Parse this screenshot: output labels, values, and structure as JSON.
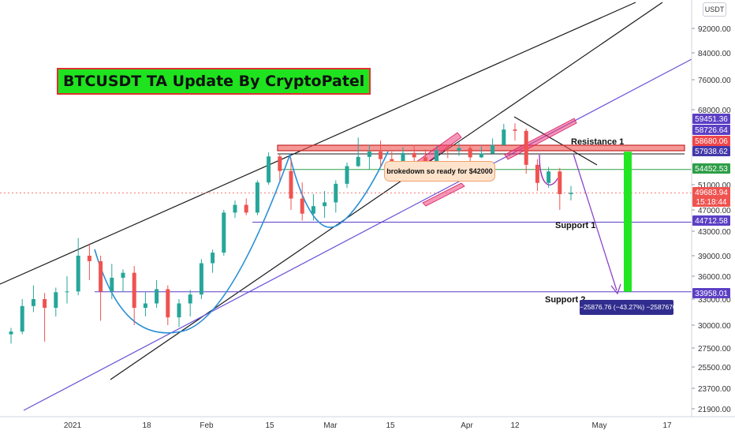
{
  "chart_data": {
    "type": "candlestick",
    "title": "BTCUSDT TA Update By CryptoPatel",
    "currency": "USDT",
    "y_ticks": [
      "92000.00",
      "84000.00",
      "76000.00",
      "68000.00",
      "51000.00",
      "47000.00",
      "43000.00",
      "39000.00",
      "36000.00",
      "33000.00",
      "30000.00",
      "27500.00",
      "25500.00",
      "23700.00",
      "21900.00"
    ],
    "y_tick_values": [
      92000,
      84000,
      76000,
      68000,
      51000,
      47000,
      43000,
      39000,
      36000,
      33000,
      30000,
      27500,
      25500,
      23700,
      21900
    ],
    "x_labels": [
      "2021",
      "18",
      "Feb",
      "15",
      "Mar",
      "15",
      "Apr",
      "12",
      "May",
      "17"
    ],
    "price_tags": [
      {
        "text": "59451.36",
        "color": "#5b3fc4"
      },
      {
        "text": "58726.64",
        "color": "#5b3fc4"
      },
      {
        "text": "58680.06",
        "color": "#f0464a"
      },
      {
        "text": "57938.62",
        "color": "#4338a8"
      },
      {
        "text": "54452.53",
        "color": "#2e9e47"
      },
      {
        "text": "49683.94",
        "color": "#ef5350"
      },
      {
        "text": "15:18:44",
        "color": "#ef5350"
      },
      {
        "text": "44712.58",
        "color": "#5b3fc4"
      },
      {
        "text": "33958.01",
        "color": "#5b3fc4"
      }
    ],
    "levels": {
      "resistance_1": 57938.62,
      "green_line": 54452.53,
      "support_1": 44712.58,
      "support_2": 33958.01,
      "last_price": 49683.94
    },
    "annotations": {
      "resistance_1": "Resistance 1",
      "support_1": "Support 1",
      "support_2": "Support 2",
      "note": "brokedown so ready for $42000",
      "measure": "−25876.76 (−43.27%) −2587676"
    },
    "candles_ohlc": [
      [
        29000,
        29700,
        28000,
        29300
      ],
      [
        29300,
        33000,
        29000,
        32200
      ],
      [
        32200,
        34800,
        31500,
        33000
      ],
      [
        33000,
        33800,
        28200,
        32000
      ],
      [
        32000,
        34500,
        31000,
        33900
      ],
      [
        33900,
        36000,
        32500,
        34000
      ],
      [
        34000,
        41900,
        33500,
        39000
      ],
      [
        39000,
        41000,
        35500,
        38200
      ],
      [
        38200,
        39000,
        30500,
        34000
      ],
      [
        34000,
        37800,
        33000,
        35800
      ],
      [
        35800,
        37000,
        33900,
        36500
      ],
      [
        36500,
        37500,
        30000,
        32000
      ],
      [
        32000,
        33900,
        31000,
        32500
      ],
      [
        32500,
        35500,
        32000,
        34300
      ],
      [
        34300,
        34800,
        30000,
        30900
      ],
      [
        30900,
        33000,
        29800,
        32500
      ],
      [
        32500,
        34200,
        31000,
        33600
      ],
      [
        33600,
        38500,
        33000,
        37900
      ],
      [
        37900,
        40000,
        36500,
        39500
      ],
      [
        39500,
        47000,
        39000,
        46500
      ],
      [
        46500,
        48500,
        45500,
        47800
      ],
      [
        47800,
        48800,
        46000,
        46500
      ],
      [
        46500,
        52000,
        46000,
        51500
      ],
      [
        51500,
        58300,
        51000,
        57400
      ],
      [
        57400,
        58000,
        52000,
        54100
      ],
      [
        54100,
        57000,
        47000,
        48800
      ],
      [
        48800,
        51500,
        45000,
        46300
      ],
      [
        46300,
        49500,
        45000,
        47600
      ],
      [
        47600,
        50000,
        45500,
        48200
      ],
      [
        48200,
        52000,
        46500,
        51200
      ],
      [
        51200,
        56000,
        50500,
        55200
      ],
      [
        55200,
        61700,
        55000,
        57300
      ],
      [
        57300,
        60000,
        54500,
        58500
      ],
      [
        58500,
        61000,
        55000,
        56800
      ],
      [
        56800,
        58500,
        53000,
        55000
      ],
      [
        55000,
        59500,
        54500,
        58200
      ],
      [
        58200,
        60000,
        55500,
        57200
      ],
      [
        57200,
        59000,
        53500,
        55700
      ],
      [
        55700,
        59800,
        55000,
        58800
      ],
      [
        58800,
        60000,
        57000,
        58700
      ],
      [
        58700,
        60500,
        57500,
        59300
      ],
      [
        59300,
        60000,
        55500,
        57200
      ],
      [
        57200,
        59700,
        57000,
        58100
      ],
      [
        58100,
        61500,
        58000,
        60000
      ],
      [
        60000,
        64800,
        59800,
        63500
      ],
      [
        63500,
        64900,
        61000,
        63200
      ],
      [
        63200,
        63700,
        53500,
        55500
      ],
      [
        55500,
        56800,
        50000,
        51400
      ],
      [
        51400,
        55000,
        50500,
        54000
      ],
      [
        54000,
        54800,
        47000,
        49500
      ],
      [
        49500,
        50800,
        48500,
        49700
      ]
    ]
  }
}
